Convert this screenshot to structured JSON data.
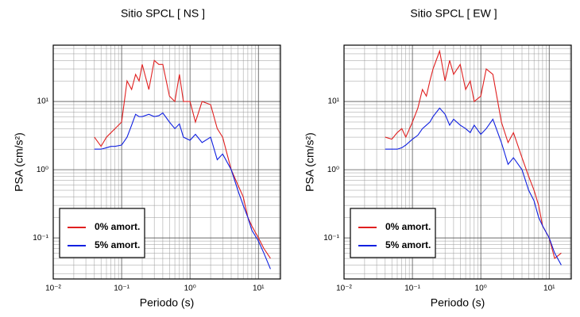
{
  "chart_data": [
    {
      "type": "line",
      "title": "Sitio SPCL [ NS ]",
      "x_label": "Periodo (s)",
      "y_label": "PSA (cm/s²)",
      "xscale": "log",
      "yscale": "log",
      "grid": "minor",
      "legend": "lower left",
      "xlim": [
        0.01,
        21
      ],
      "ylim": [
        0.025,
        67
      ],
      "xticks": [
        {
          "value": 0.01,
          "label": "10⁻²"
        },
        {
          "value": 0.1,
          "label": "10⁻¹"
        },
        {
          "value": 1,
          "label": "10⁰"
        },
        {
          "value": 10,
          "label": "10¹"
        }
      ],
      "yticks": [
        {
          "value": 0.1,
          "label": "10⁻¹"
        },
        {
          "value": 1,
          "label": "10⁰"
        },
        {
          "value": 10,
          "label": "10¹"
        }
      ],
      "x": [
        0.04,
        0.05,
        0.06,
        0.07,
        0.08,
        0.1,
        0.12,
        0.14,
        0.16,
        0.18,
        0.2,
        0.25,
        0.3,
        0.35,
        0.4,
        0.5,
        0.6,
        0.7,
        0.8,
        1,
        1.2,
        1.5,
        2,
        2.5,
        3,
        4,
        5,
        6,
        7,
        8,
        10,
        12,
        15
      ],
      "series": [
        {
          "name": "0% amort.",
          "color": "#e02020",
          "values": [
            3,
            2.2,
            3,
            3.5,
            4,
            5,
            20,
            15,
            25,
            20,
            35,
            15,
            40,
            35,
            35,
            12,
            10,
            25,
            10,
            10,
            5,
            10,
            9,
            4,
            3,
            1.0,
            0.6,
            0.4,
            0.2,
            0.15,
            0.1,
            0.07,
            0.05
          ]
        },
        {
          "name": "5% amort.",
          "color": "#1020e0",
          "values": [
            2,
            2,
            2.1,
            2.2,
            2.2,
            2.3,
            3,
            4.5,
            6.5,
            6,
            6,
            6.5,
            6,
            6.2,
            6.8,
            5,
            4,
            4.7,
            3,
            2.7,
            3.3,
            2.5,
            3,
            1.4,
            1.7,
            1.0,
            0.5,
            0.3,
            0.2,
            0.13,
            0.09,
            0.06,
            0.035
          ]
        }
      ]
    },
    {
      "type": "line",
      "title": "Sitio SPCL [ EW ]",
      "x_label": "Periodo (s)",
      "y_label": "PSA (cm/s²)",
      "xscale": "log",
      "yscale": "log",
      "grid": "minor",
      "legend": "lower left",
      "xlim": [
        0.01,
        21
      ],
      "ylim": [
        0.025,
        67
      ],
      "xticks": [
        {
          "value": 0.01,
          "label": "10⁻²"
        },
        {
          "value": 0.1,
          "label": "10⁻¹"
        },
        {
          "value": 1,
          "label": "10⁰"
        },
        {
          "value": 10,
          "label": "10¹"
        }
      ],
      "yticks": [
        {
          "value": 0.1,
          "label": "10⁻¹"
        },
        {
          "value": 1,
          "label": "10⁰"
        },
        {
          "value": 10,
          "label": "10¹"
        }
      ],
      "x": [
        0.04,
        0.05,
        0.06,
        0.07,
        0.08,
        0.1,
        0.12,
        0.14,
        0.16,
        0.18,
        0.2,
        0.25,
        0.3,
        0.35,
        0.4,
        0.5,
        0.6,
        0.7,
        0.8,
        1,
        1.2,
        1.5,
        2,
        2.5,
        3,
        4,
        5,
        6,
        7,
        8,
        10,
        12,
        15
      ],
      "series": [
        {
          "name": "0% amort.",
          "color": "#e02020",
          "values": [
            3,
            2.8,
            3.5,
            4,
            3,
            5,
            8,
            15,
            12,
            20,
            30,
            55,
            20,
            40,
            25,
            35,
            15,
            20,
            10,
            12,
            30,
            25,
            5,
            2.5,
            3.5,
            1.5,
            0.8,
            0.5,
            0.3,
            0.15,
            0.1,
            0.05,
            0.06
          ]
        },
        {
          "name": "5% amort.",
          "color": "#1020e0",
          "values": [
            2,
            2,
            2,
            2.1,
            2.3,
            2.8,
            3.2,
            4,
            4.5,
            5,
            6,
            8,
            6.5,
            4.5,
            5.5,
            4.5,
            4,
            3.5,
            4.5,
            3.3,
            4,
            5.5,
            2.5,
            1.2,
            1.5,
            1.0,
            0.5,
            0.35,
            0.2,
            0.15,
            0.1,
            0.06,
            0.04
          ]
        }
      ]
    }
  ]
}
